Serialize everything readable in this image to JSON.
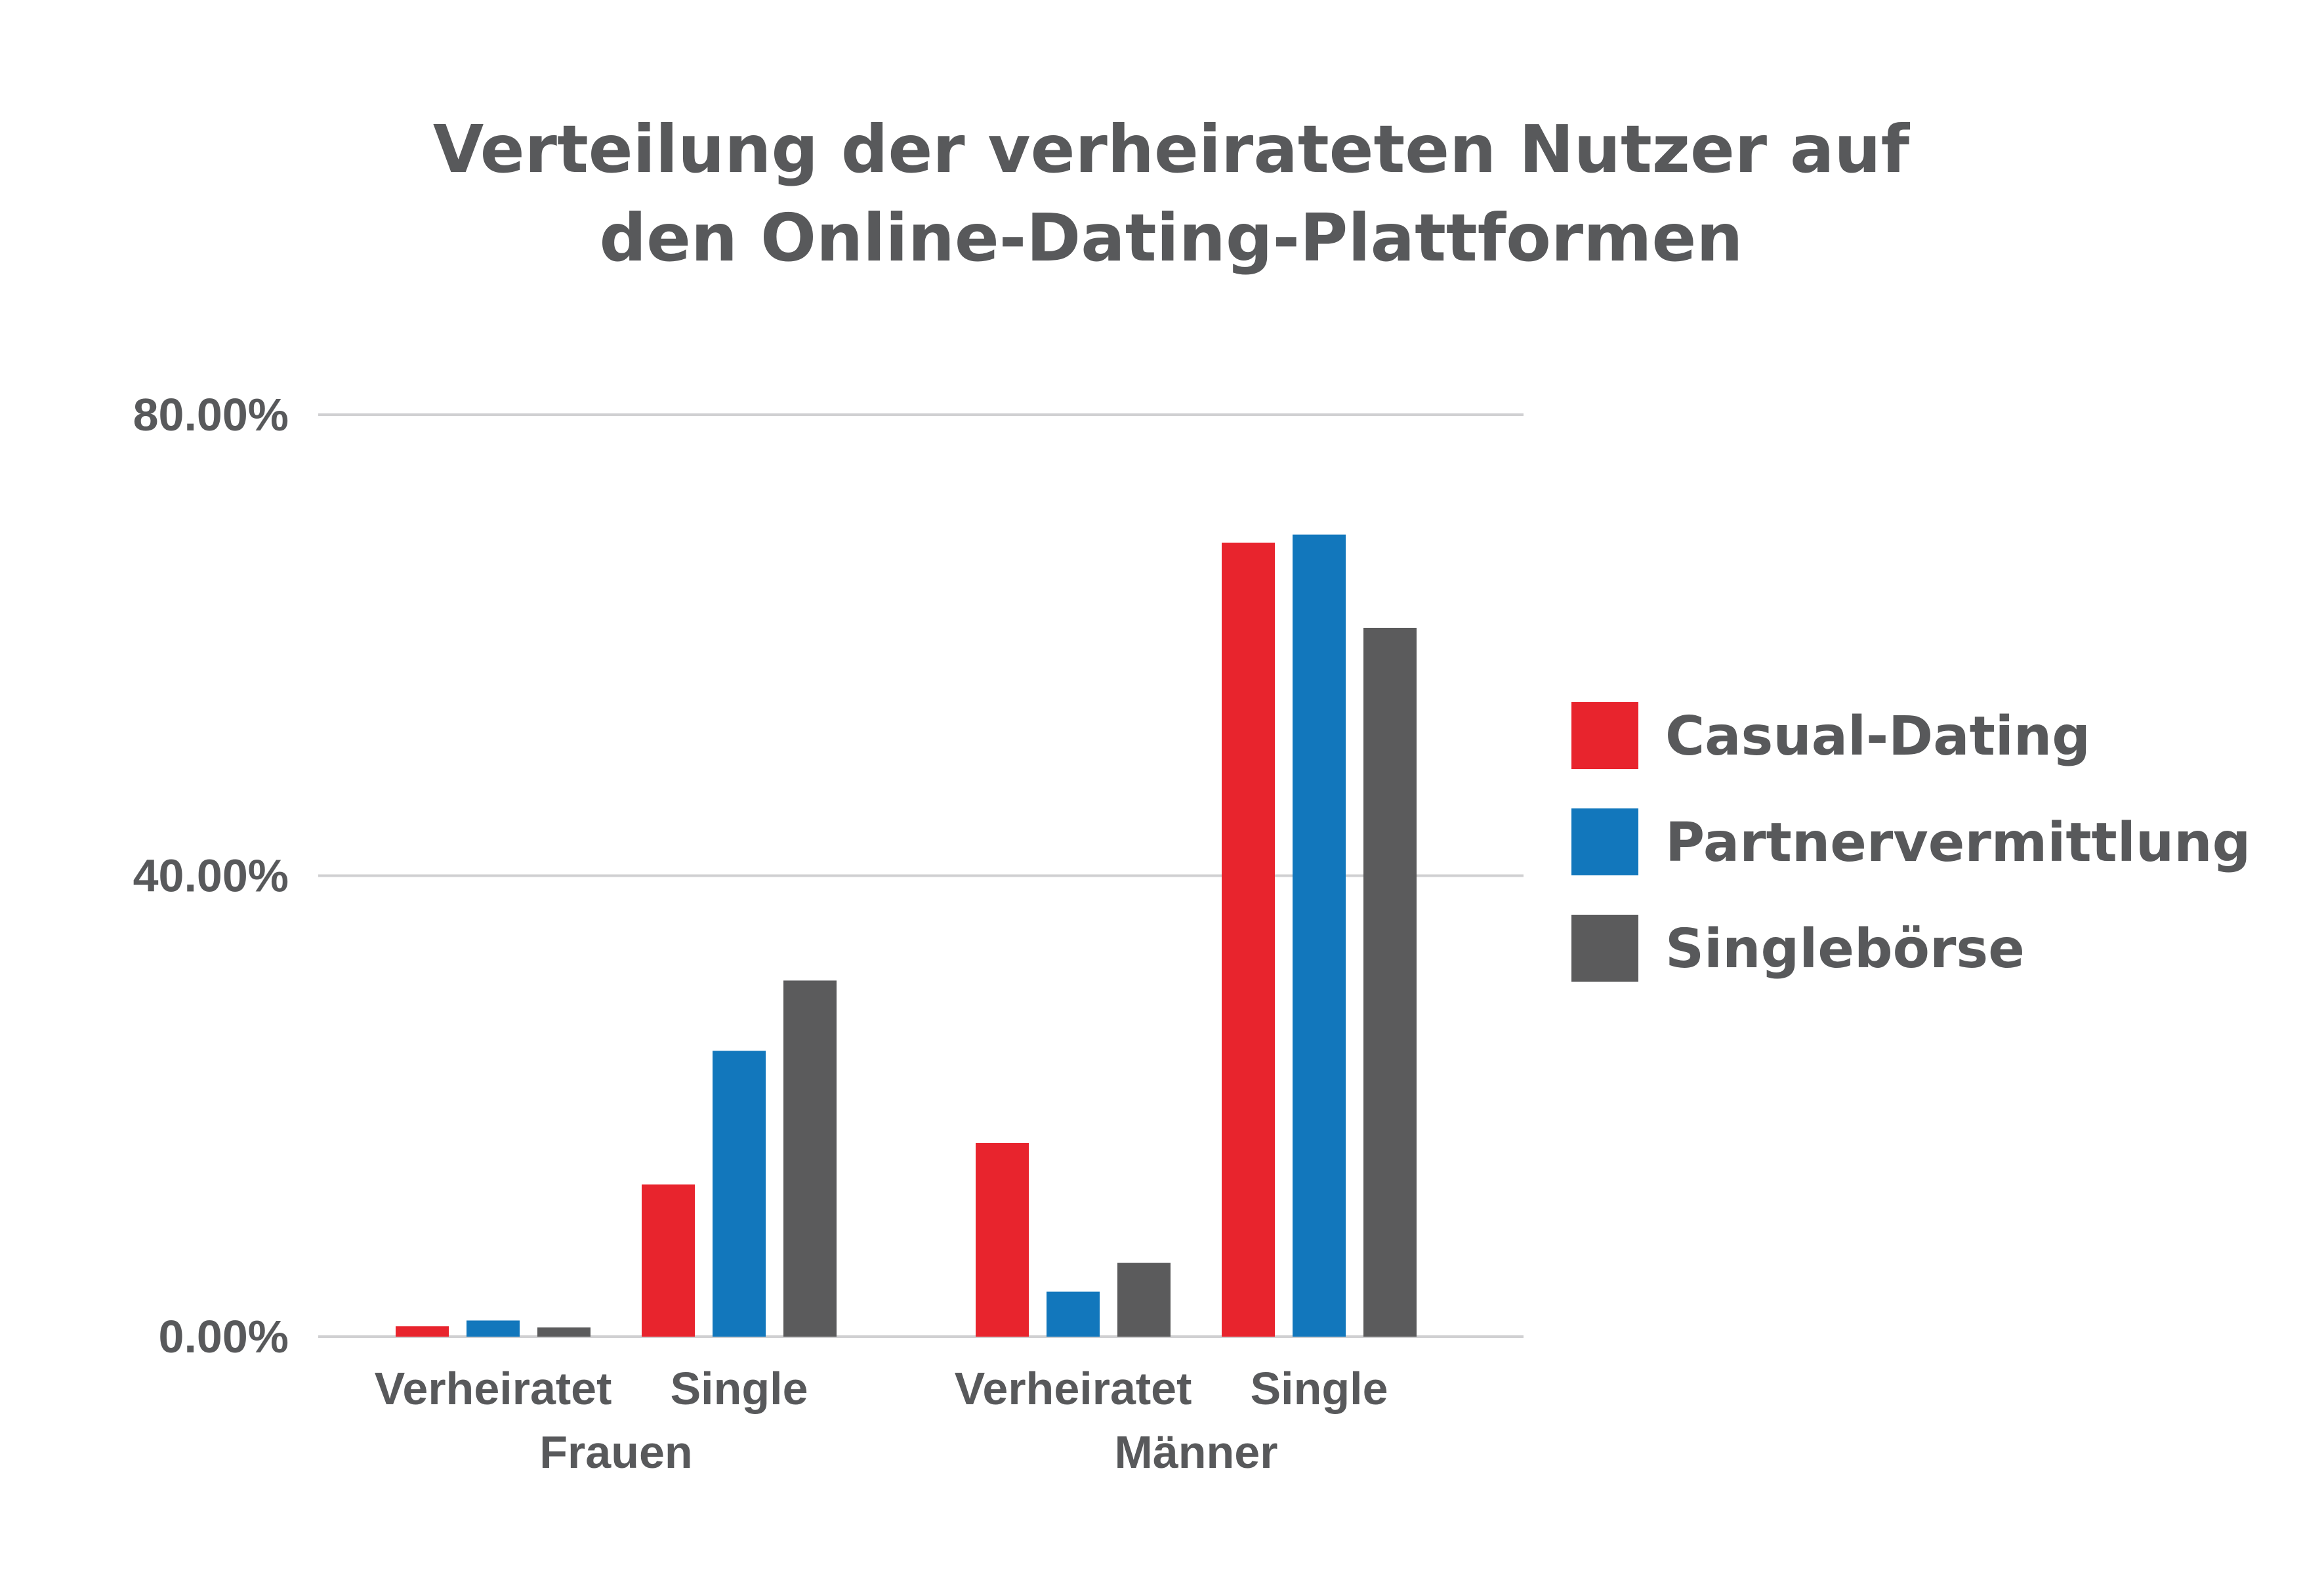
{
  "chart_data": {
    "type": "bar",
    "title_lines": [
      "Verteilung der verheirateten Nutzer auf",
      "den Online-Dating-Plattformen"
    ],
    "groups": [
      {
        "label": "Frauen",
        "categories": [
          "Verheiratet",
          "Single"
        ]
      },
      {
        "label": "Männer",
        "categories": [
          "Verheiratet",
          "Single"
        ]
      }
    ],
    "series": [
      {
        "name": "Casual-Dating",
        "color": "#e8242d",
        "values": [
          0.9,
          13.2,
          16.8,
          68.9
        ]
      },
      {
        "name": "Partnervermittlung",
        "color": "#1277bc",
        "values": [
          1.4,
          24.8,
          3.9,
          69.6
        ]
      },
      {
        "name": "Singlebörse",
        "color": "#5b5b5c",
        "values": [
          0.8,
          30.9,
          6.4,
          61.5
        ]
      }
    ],
    "y_ticks": [
      {
        "value": 0,
        "label": "0.00%"
      },
      {
        "value": 40,
        "label": "40.00%"
      },
      {
        "value": 80,
        "label": "80.00%"
      }
    ],
    "ylim": [
      0,
      80
    ],
    "legend_position": "right",
    "grid": true
  }
}
